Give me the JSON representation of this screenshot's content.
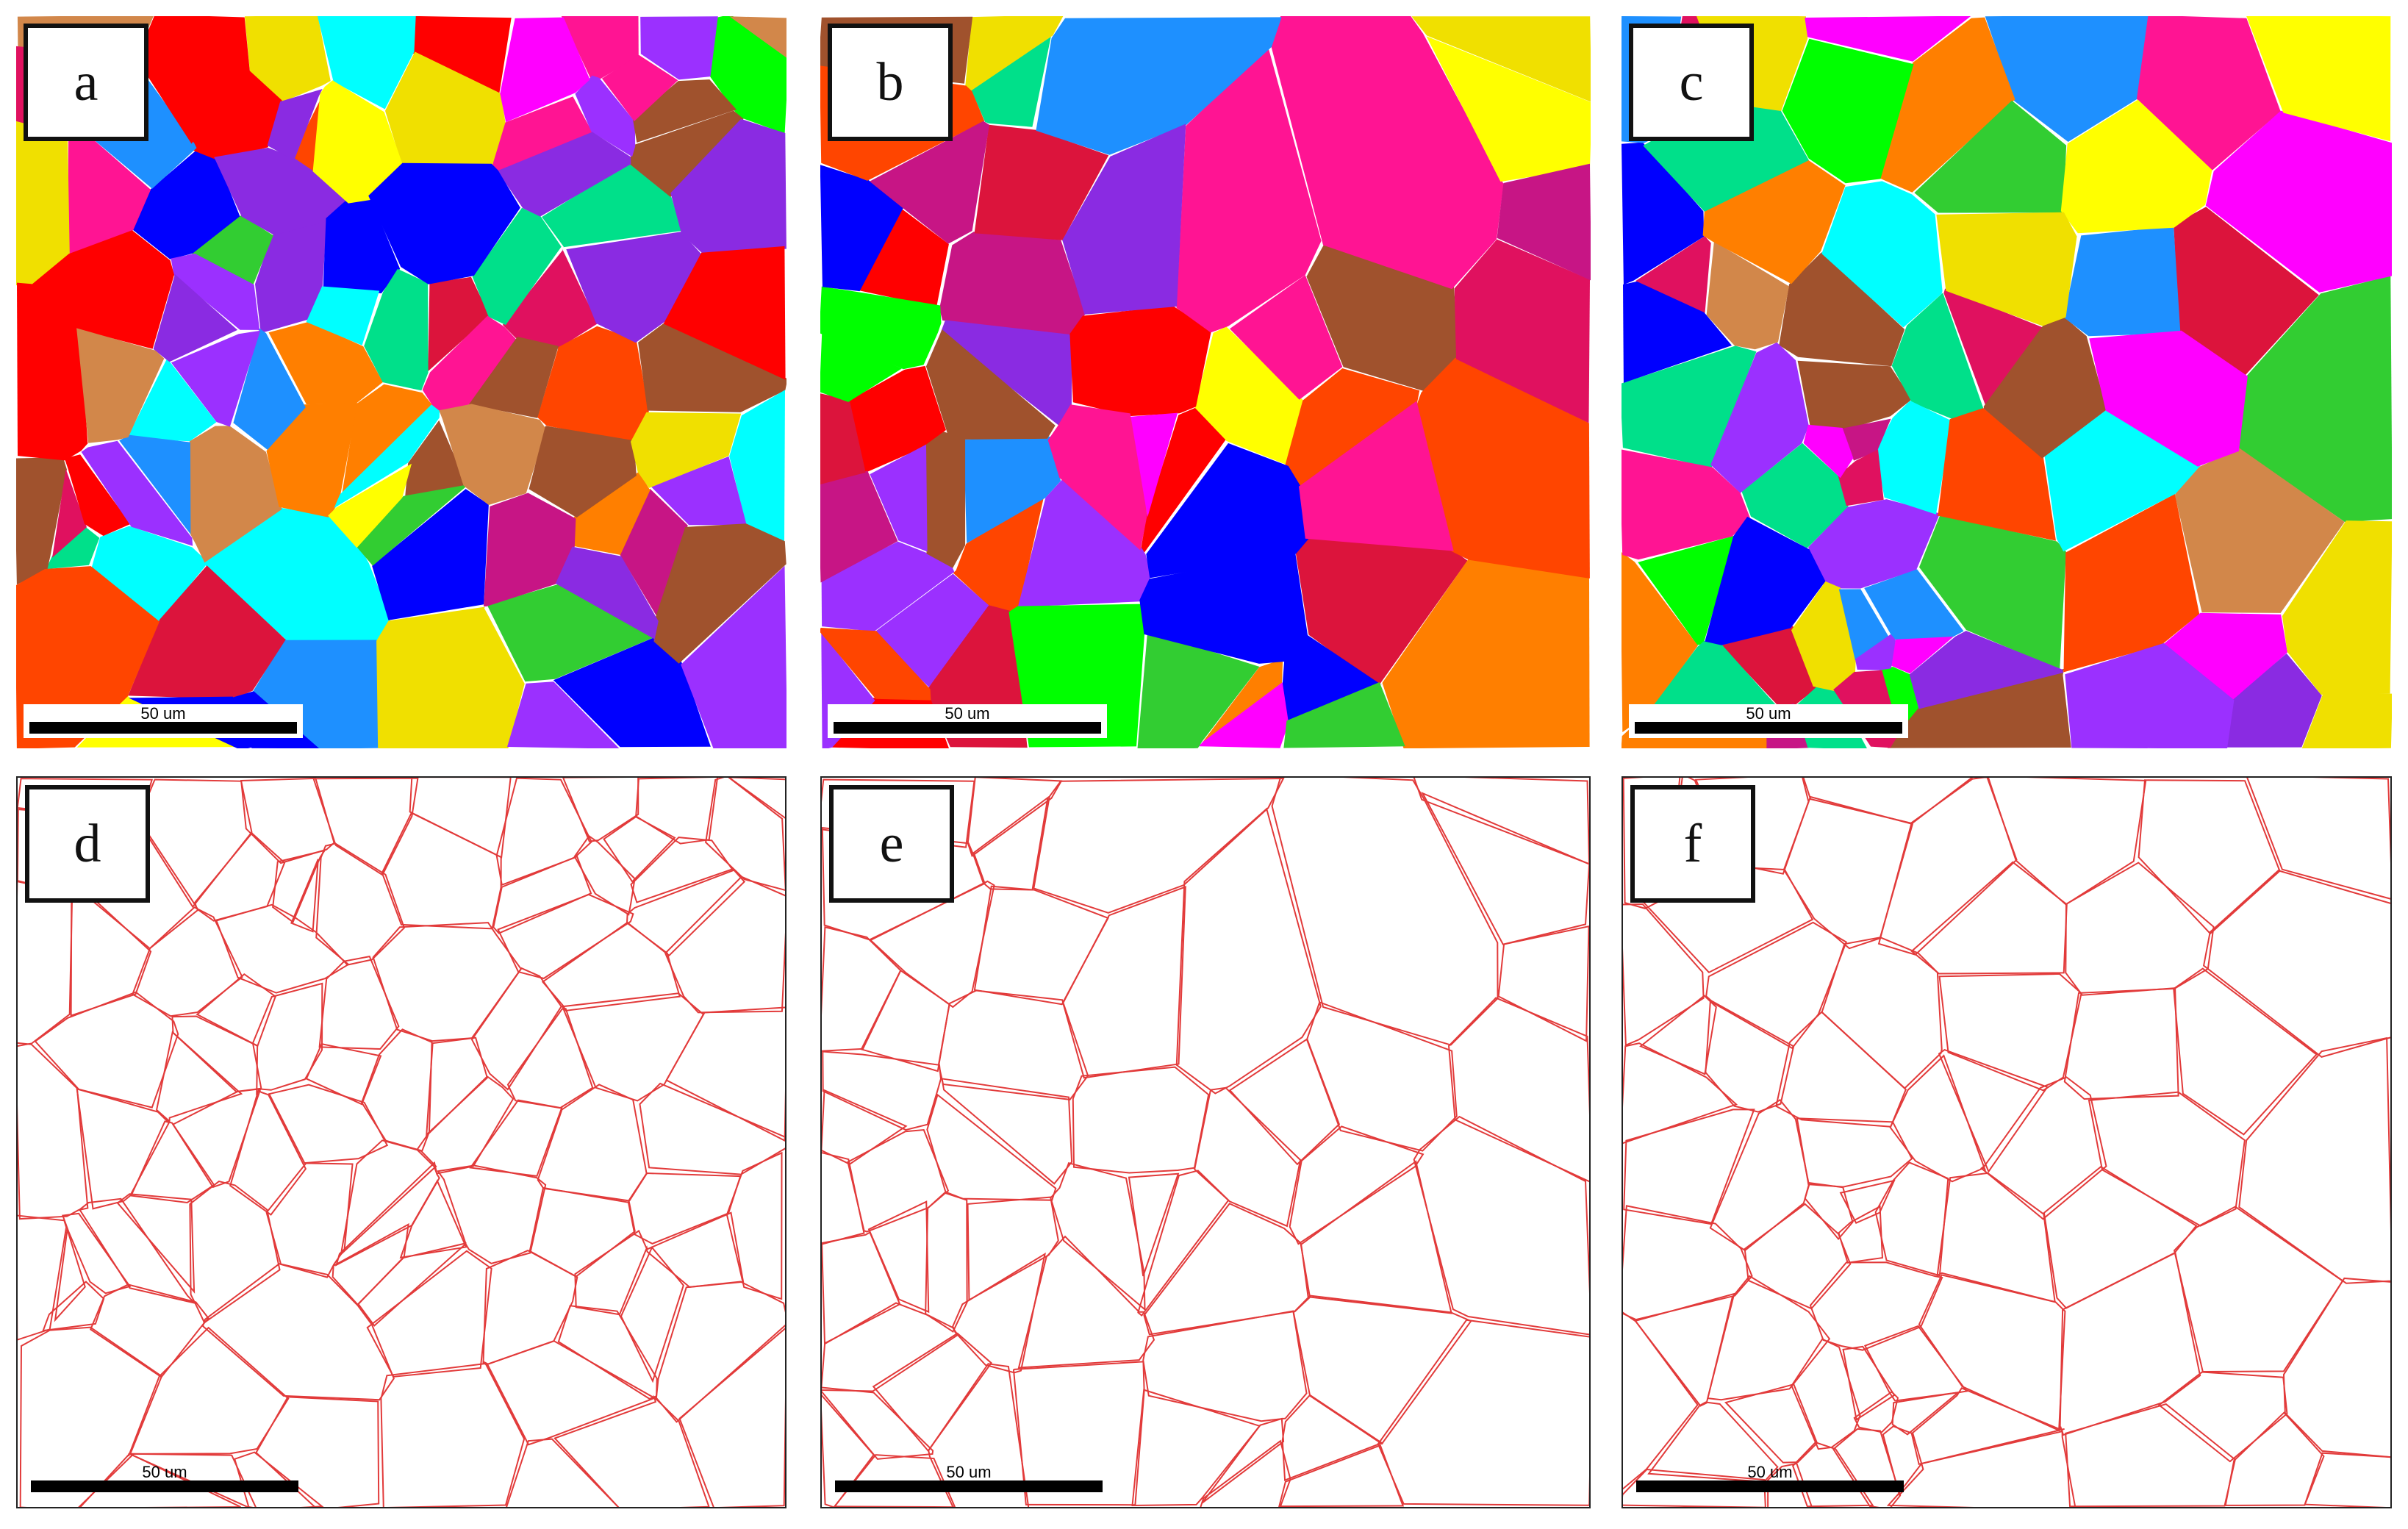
{
  "panels": [
    {
      "id": "a",
      "label": "a",
      "type": "orientation-map",
      "scale": "50 um"
    },
    {
      "id": "b",
      "label": "b",
      "type": "orientation-map",
      "scale": "50 um"
    },
    {
      "id": "c",
      "label": "c",
      "type": "orientation-map",
      "scale": "50 um"
    },
    {
      "id": "d",
      "label": "d",
      "type": "boundary-map",
      "scale": "50 um"
    },
    {
      "id": "e",
      "label": "e",
      "type": "boundary-map",
      "scale": "50 um"
    },
    {
      "id": "f",
      "label": "f",
      "type": "boundary-map",
      "scale": "50 um"
    }
  ],
  "grain_palette": [
    "#ff0000",
    "#00ff00",
    "#0000ff",
    "#ffff00",
    "#ff00ff",
    "#00ffff",
    "#ff1493",
    "#ff7f00",
    "#9b30ff",
    "#00e08a",
    "#1e90ff",
    "#dc143c",
    "#d2874a",
    "#a0522d",
    "#e0115f",
    "#ff4500",
    "#32cd32",
    "#c71585",
    "#8a2be2",
    "#f0e000"
  ],
  "boundary_color": "#e23a3a"
}
